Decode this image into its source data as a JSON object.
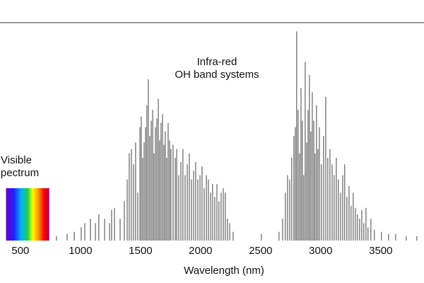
{
  "chart_data": {
    "type": "stem",
    "xlabel": "Wavelength (nm)",
    "annotations": [
      "Infra-red",
      "OH band systems",
      "Visible",
      "Spectrum"
    ],
    "visible_band": [
      380,
      740
    ],
    "color": "#444444",
    "xlim": [
      330,
      3860
    ],
    "ylim": [
      0,
      100
    ],
    "xticks": [
      500,
      1000,
      1500,
      2000,
      2500,
      3000,
      3500
    ],
    "x": [
      800,
      889,
      948,
      1006,
      1036,
      1083,
      1124,
      1153,
      1201,
      1242,
      1259,
      1283,
      1330,
      1365,
      1389,
      1406,
      1424,
      1442,
      1459,
      1477,
      1495,
      1506,
      1518,
      1530,
      1542,
      1553,
      1565,
      1577,
      1589,
      1601,
      1612,
      1624,
      1636,
      1648,
      1659,
      1671,
      1683,
      1695,
      1706,
      1718,
      1730,
      1742,
      1753,
      1771,
      1789,
      1801,
      1818,
      1836,
      1853,
      1871,
      1889,
      1906,
      1924,
      1942,
      1959,
      1977,
      1995,
      2012,
      2030,
      2048,
      2065,
      2083,
      2100,
      2118,
      2136,
      2153,
      2171,
      2189,
      2206,
      2224,
      2242,
      2271,
      2506,
      2653,
      2683,
      2706,
      2724,
      2742,
      2759,
      2777,
      2789,
      2800,
      2812,
      2824,
      2836,
      2847,
      2859,
      2871,
      2883,
      2895,
      2906,
      2918,
      2930,
      2942,
      2953,
      2965,
      2977,
      2989,
      3006,
      3024,
      3042,
      3059,
      3077,
      3095,
      3112,
      3130,
      3147,
      3165,
      3183,
      3200,
      3218,
      3236,
      3253,
      3271,
      3289,
      3306,
      3324,
      3342,
      3359,
      3377,
      3394,
      3418,
      3447,
      3506,
      3565,
      3624,
      3712,
      3800
    ],
    "values": [
      2,
      3,
      4,
      6,
      8,
      10,
      8,
      12,
      10,
      8,
      14,
      15,
      10,
      18,
      28,
      40,
      42,
      35,
      45,
      22,
      52,
      57,
      38,
      45,
      52,
      62,
      74,
      48,
      55,
      60,
      40,
      52,
      56,
      65,
      46,
      54,
      58,
      44,
      50,
      38,
      54,
      46,
      42,
      44,
      38,
      42,
      30,
      36,
      42,
      30,
      35,
      40,
      28,
      32,
      36,
      28,
      30,
      34,
      24,
      30,
      28,
      22,
      26,
      20,
      26,
      18,
      22,
      24,
      22,
      10,
      8,
      4,
      3,
      4,
      10,
      22,
      30,
      28,
      38,
      48,
      52,
      96,
      60,
      40,
      70,
      55,
      30,
      82,
      45,
      60,
      76,
      50,
      68,
      55,
      40,
      62,
      42,
      52,
      35,
      48,
      66,
      38,
      42,
      35,
      30,
      38,
      28,
      22,
      30,
      35,
      20,
      25,
      16,
      22,
      15,
      12,
      10,
      14,
      8,
      15,
      6,
      10,
      5,
      4,
      3,
      3,
      2,
      2
    ]
  }
}
